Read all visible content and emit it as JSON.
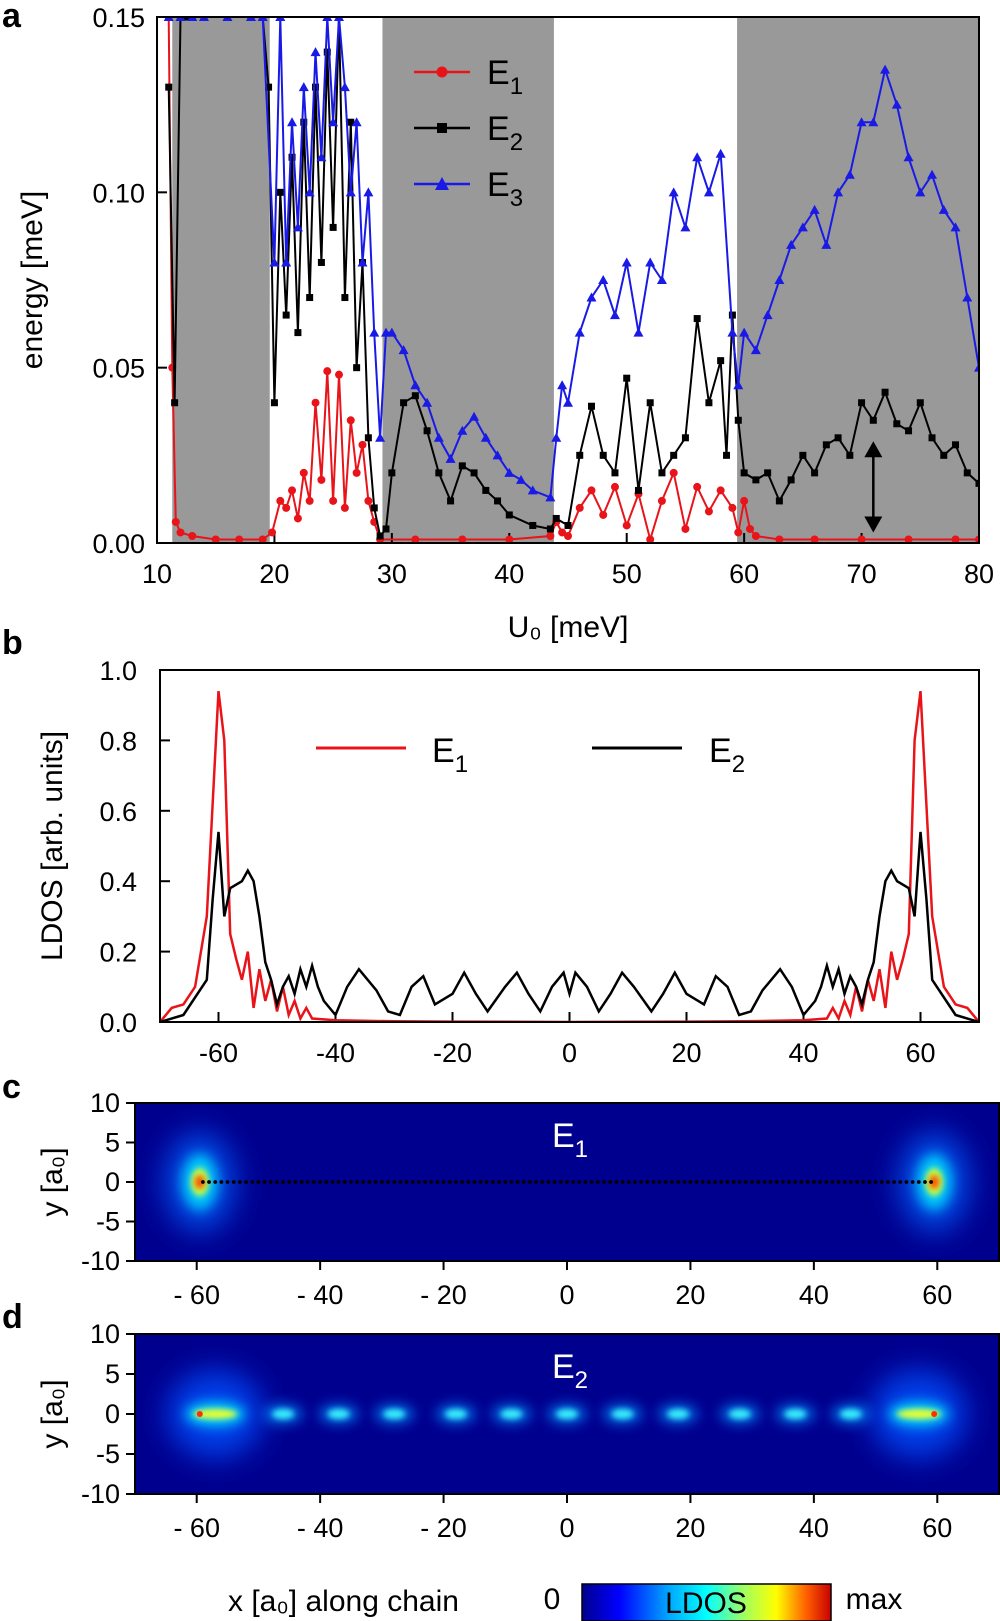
{
  "chart_data": [
    {
      "panel": "a",
      "type": "line",
      "xlabel": "U₀  [meV]",
      "ylabel": "energy [meV]",
      "xlim": [
        10,
        80
      ],
      "ylim": [
        0,
        0.15
      ],
      "xticks": [
        "10",
        "20",
        "30",
        "40",
        "50",
        "60",
        "70",
        "80"
      ],
      "yticks": [
        "0.00",
        "0.05",
        "0.10",
        "0.15"
      ],
      "shaded_regions": [
        [
          11.3,
          19.6
        ],
        [
          29.2,
          43.8
        ],
        [
          59.4,
          80
        ]
      ],
      "legend_position": "top-center",
      "arrow_annotation": {
        "x": 71,
        "y_from": 0.003,
        "y_to": 0.029
      },
      "series": [
        {
          "name": "E1",
          "color": "#e8141a",
          "marker": "circle",
          "x": [
            11,
            11.3,
            11.6,
            12,
            13,
            15,
            17,
            19,
            19.8,
            20.5,
            21,
            21.5,
            22,
            22.5,
            23,
            23.5,
            24,
            24.5,
            25,
            25.5,
            26,
            26.5,
            27,
            27.5,
            28,
            28.5,
            29,
            32,
            36,
            40,
            43.5,
            44,
            44.5,
            45,
            46,
            47,
            48,
            49,
            50,
            51,
            52,
            53,
            54,
            55,
            56,
            57,
            58,
            59,
            59.5,
            60,
            60.5,
            61,
            63,
            66,
            70,
            74,
            78,
            80
          ],
          "y": [
            0.15,
            0.05,
            0.006,
            0.003,
            0.002,
            0.001,
            0.001,
            0.001,
            0.003,
            0.012,
            0.01,
            0.015,
            0.007,
            0.02,
            0.012,
            0.04,
            0.018,
            0.049,
            0.012,
            0.048,
            0.01,
            0.035,
            0.02,
            0.028,
            0.012,
            0.006,
            0.001,
            0.001,
            0.001,
            0.001,
            0.002,
            0.006,
            0.003,
            0.002,
            0.01,
            0.015,
            0.008,
            0.016,
            0.005,
            0.014,
            0.001,
            0.012,
            0.02,
            0.004,
            0.016,
            0.009,
            0.015,
            0.01,
            0.003,
            0.012,
            0.004,
            0.002,
            0.001,
            0.001,
            0.001,
            0.001,
            0.001,
            0.001
          ]
        },
        {
          "name": "E2",
          "color": "#000000",
          "marker": "square",
          "x": [
            11,
            11.5,
            12,
            12.5,
            13,
            14,
            16,
            18,
            19,
            19.5,
            20,
            20.5,
            21,
            21.5,
            22,
            22.5,
            23,
            23.5,
            24,
            24.5,
            25,
            25.5,
            26,
            26.5,
            27,
            27.5,
            28,
            28.5,
            29,
            29.5,
            30,
            31,
            32,
            33,
            34,
            35,
            36,
            37,
            38,
            39,
            40,
            42,
            43.5,
            44,
            45,
            46,
            47,
            48,
            49,
            50,
            51,
            52,
            53,
            54,
            55,
            56,
            57,
            58,
            58.5,
            59,
            59.5,
            60,
            61,
            62,
            63,
            64,
            65,
            66,
            67,
            68,
            69,
            70,
            71,
            72,
            73,
            74,
            75,
            76,
            77,
            78,
            79,
            80
          ],
          "y": [
            0.13,
            0.04,
            0.15,
            0.15,
            0.15,
            0.15,
            0.15,
            0.15,
            0.15,
            0.13,
            0.04,
            0.1,
            0.065,
            0.11,
            0.06,
            0.12,
            0.07,
            0.13,
            0.08,
            0.14,
            0.09,
            0.15,
            0.07,
            0.12,
            0.05,
            0.08,
            0.03,
            0.01,
            0.002,
            0.004,
            0.02,
            0.04,
            0.042,
            0.032,
            0.02,
            0.012,
            0.022,
            0.02,
            0.015,
            0.012,
            0.008,
            0.005,
            0.004,
            0.007,
            0.005,
            0.025,
            0.039,
            0.025,
            0.02,
            0.047,
            0.015,
            0.04,
            0.02,
            0.025,
            0.03,
            0.064,
            0.04,
            0.052,
            0.025,
            0.065,
            0.035,
            0.02,
            0.018,
            0.02,
            0.012,
            0.018,
            0.025,
            0.02,
            0.028,
            0.03,
            0.025,
            0.04,
            0.035,
            0.043,
            0.034,
            0.032,
            0.04,
            0.03,
            0.025,
            0.028,
            0.02,
            0.017
          ]
        },
        {
          "name": "E3",
          "color": "#1a1ae6",
          "marker": "triangle",
          "x": [
            11,
            12,
            13,
            14,
            16,
            18,
            19,
            20,
            20.5,
            21,
            21.5,
            22,
            22.5,
            23,
            23.5,
            24,
            24.5,
            25,
            25.5,
            26,
            26.5,
            27,
            27.5,
            28,
            28.5,
            29,
            29.5,
            30,
            31,
            32,
            33,
            34,
            35,
            36,
            37,
            38,
            39,
            40,
            41,
            42,
            43.5,
            44,
            44.5,
            45,
            46,
            47,
            48,
            49,
            50,
            51,
            52,
            53,
            54,
            55,
            56,
            57,
            58,
            59,
            59.5,
            60,
            61,
            62,
            63,
            64,
            65,
            66,
            67,
            68,
            69,
            70,
            71,
            72,
            73,
            74,
            75,
            76,
            77,
            78,
            79,
            80
          ],
          "y": [
            0.15,
            0.15,
            0.15,
            0.15,
            0.15,
            0.15,
            0.15,
            0.08,
            0.15,
            0.08,
            0.12,
            0.09,
            0.13,
            0.1,
            0.14,
            0.11,
            0.15,
            0.12,
            0.15,
            0.13,
            0.1,
            0.12,
            0.08,
            0.1,
            0.06,
            0.03,
            0.06,
            0.06,
            0.055,
            0.045,
            0.04,
            0.03,
            0.024,
            0.032,
            0.036,
            0.03,
            0.025,
            0.02,
            0.018,
            0.015,
            0.013,
            0.03,
            0.045,
            0.04,
            0.06,
            0.07,
            0.075,
            0.065,
            0.08,
            0.06,
            0.08,
            0.075,
            0.1,
            0.09,
            0.11,
            0.1,
            0.111,
            0.06,
            0.045,
            0.06,
            0.055,
            0.065,
            0.075,
            0.085,
            0.09,
            0.095,
            0.085,
            0.1,
            0.105,
            0.12,
            0.12,
            0.135,
            0.125,
            0.11,
            0.1,
            0.105,
            0.095,
            0.09,
            0.07,
            0.05
          ]
        }
      ]
    },
    {
      "panel": "b",
      "type": "line",
      "xlabel": "",
      "ylabel": "LDOS [arb. units]",
      "xlim": [
        -70,
        70
      ],
      "ylim": [
        0,
        1.0
      ],
      "xticks": [
        "-60",
        "-40",
        "-20",
        "0",
        "20",
        "40",
        "60"
      ],
      "yticks": [
        "0.0",
        "0.2",
        "0.4",
        "0.6",
        "0.8",
        "1.0"
      ],
      "legend_position": "top-center",
      "series": [
        {
          "name": "E1",
          "color": "#e8141a",
          "x": [
            -70,
            -68,
            -66,
            -64,
            -62,
            -60,
            -59,
            -58,
            -57,
            -56,
            -55,
            -54,
            -53,
            -52,
            -51,
            -50,
            -49,
            -48,
            -47,
            -46,
            -45,
            -44,
            -40,
            -30,
            -20,
            0,
            20,
            30,
            40,
            44,
            45,
            46,
            47,
            48,
            49,
            50,
            51,
            52,
            53,
            54,
            55,
            56,
            57,
            58,
            59,
            60,
            62,
            64,
            66,
            68,
            70
          ],
          "y": [
            0.0,
            0.04,
            0.05,
            0.1,
            0.3,
            0.94,
            0.8,
            0.25,
            0.18,
            0.12,
            0.2,
            0.04,
            0.15,
            0.06,
            0.12,
            0.03,
            0.1,
            0.02,
            0.06,
            0.01,
            0.04,
            0.01,
            0.005,
            0.002,
            0.001,
            0.0,
            0.001,
            0.002,
            0.005,
            0.01,
            0.04,
            0.01,
            0.06,
            0.02,
            0.1,
            0.03,
            0.12,
            0.06,
            0.15,
            0.04,
            0.2,
            0.12,
            0.18,
            0.25,
            0.8,
            0.94,
            0.3,
            0.1,
            0.05,
            0.04,
            0.0
          ]
        },
        {
          "name": "E2",
          "color": "#000000",
          "x": [
            -70,
            -66,
            -62,
            -61,
            -60,
            -59,
            -58,
            -56,
            -55,
            -54,
            -53,
            -52,
            -51,
            -50,
            -49,
            -48,
            -47,
            -46,
            -45,
            -44,
            -43,
            -42,
            -40,
            -38,
            -36,
            -33,
            -31,
            -29,
            -27,
            -25,
            -23,
            -20,
            -18,
            -16,
            -14,
            -11,
            -9,
            -7,
            -5,
            -3,
            -1,
            0,
            1,
            3,
            5,
            7,
            9,
            11,
            14,
            16,
            18,
            20,
            23,
            25,
            27,
            29,
            31,
            33,
            36,
            38,
            40,
            42,
            43,
            44,
            45,
            46,
            47,
            48,
            49,
            50,
            51,
            52,
            53,
            54,
            55,
            56,
            58,
            59,
            60,
            61,
            62,
            66,
            70
          ],
          "y": [
            0.0,
            0.02,
            0.12,
            0.35,
            0.54,
            0.3,
            0.38,
            0.4,
            0.43,
            0.4,
            0.3,
            0.17,
            0.12,
            0.05,
            0.1,
            0.13,
            0.08,
            0.15,
            0.1,
            0.16,
            0.1,
            0.06,
            0.02,
            0.1,
            0.15,
            0.09,
            0.03,
            0.02,
            0.1,
            0.13,
            0.05,
            0.08,
            0.14,
            0.08,
            0.03,
            0.1,
            0.14,
            0.08,
            0.03,
            0.1,
            0.14,
            0.08,
            0.14,
            0.1,
            0.03,
            0.08,
            0.14,
            0.1,
            0.03,
            0.08,
            0.14,
            0.08,
            0.05,
            0.13,
            0.1,
            0.02,
            0.03,
            0.09,
            0.15,
            0.1,
            0.02,
            0.06,
            0.1,
            0.16,
            0.1,
            0.15,
            0.08,
            0.13,
            0.1,
            0.05,
            0.12,
            0.17,
            0.3,
            0.4,
            0.43,
            0.4,
            0.38,
            0.3,
            0.54,
            0.35,
            0.12,
            0.02,
            0.0
          ]
        }
      ]
    },
    {
      "panel": "c",
      "type": "heatmap",
      "title": "E1",
      "ylabel": "y [a₀]",
      "xlim": [
        -70,
        70
      ],
      "ylim": [
        -10,
        10
      ],
      "xticks": [
        "- 60",
        "- 40",
        "- 20",
        "0",
        "20",
        "40",
        "60"
      ],
      "yticks": [
        "10",
        "5",
        "0",
        "-5",
        "-10"
      ],
      "chain_atoms_x_range": [
        -59,
        59
      ],
      "hotspots_x": [
        -59.5,
        59.5
      ]
    },
    {
      "panel": "d",
      "type": "heatmap",
      "title": "E2",
      "ylabel": "y [a₀]",
      "xlabel": "x [a₀] along chain",
      "xlim": [
        -70,
        70
      ],
      "ylim": [
        -10,
        10
      ],
      "xticks": [
        "- 60",
        "- 40",
        "- 20",
        "0",
        "20",
        "40",
        "60"
      ],
      "yticks": [
        "10",
        "5",
        "0",
        "-5",
        "-10"
      ],
      "blobs_x": [
        -46,
        -37,
        -28,
        -18,
        -9,
        0,
        9,
        18,
        28,
        37,
        46
      ],
      "colorbar": {
        "label": "LDOS",
        "min_label": "0",
        "max_label": "max"
      }
    }
  ],
  "labels": {
    "panel_a": "a",
    "panel_b": "b",
    "panel_c": "c",
    "panel_d": "d",
    "legend_e1_base": "E",
    "legend_e1_sub": "1",
    "legend_e2_base": "E",
    "legend_e2_sub": "2",
    "legend_e3_base": "E",
    "legend_e3_sub": "3",
    "a_xlabel": "U₀  [meV]",
    "a_ylabel": "energy [meV]",
    "b_ylabel": "LDOS [arb. units]",
    "c_ylabel": "y [a₀]",
    "d_ylabel": "y [a₀]",
    "c_title_base": "E",
    "c_title_sub": "1",
    "d_title_base": "E",
    "d_title_sub": "2",
    "d_xlabel": "x [a₀] along chain",
    "cbar_min": "0",
    "cbar_label": "LDOS",
    "cbar_max": "max"
  },
  "colors": {
    "e1": "#e8141a",
    "e2": "#000000",
    "e3": "#1a1ae6",
    "shade": "#999999",
    "heatmap_background": "#00008f"
  }
}
